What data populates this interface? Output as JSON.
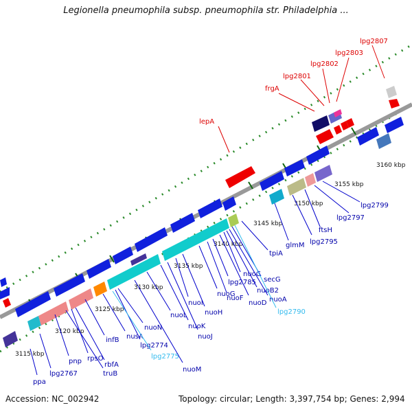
{
  "header": {
    "title": "Legionella pneumophila subsp. pneumophila str. Philadelphia ..."
  },
  "footer": {
    "accession": "Accession: NC_002942",
    "summary": "Topology: circular; Length: 3,397,754 bp; Genes: 2,994"
  },
  "colors": {
    "backbone": "#999999",
    "forward_gene": "#0000ee",
    "label_forward": "#dd0000",
    "label_reverse": "#0000aa",
    "label_highlight": "#33bbee",
    "tick": "#116611"
  },
  "scale_labels": [
    "3115 kbp",
    "3120 kbp",
    "3125 kbp",
    "3130 kbp",
    "3135 kbp",
    "3140 kbp",
    "3145 kbp",
    "3150 kbp",
    "3155 kbp",
    "3160 kbp"
  ],
  "upper_genes": [
    "lepA",
    "frgA",
    "lpg2801",
    "lpg2802",
    "lpg2803",
    "lpg2807"
  ],
  "lower_genes": [
    "ppa",
    "lpg2767",
    "pnp",
    "rpsO",
    "rbfA",
    "truB",
    "infB",
    "nusA",
    "nuoN",
    "lpg2774",
    "lpg2775",
    "nuoM",
    "nuoL",
    "nuoK",
    "nuoJ",
    "nuoI",
    "nuoH",
    "nuoG",
    "nuoF",
    "lpg2785",
    "nuoD",
    "nuoC",
    "nuoB2",
    "nuoA",
    "secG",
    "lpg2790",
    "tpiA",
    "glmM",
    "lpg2795",
    "ftsH",
    "lpg2797",
    "lpg2799"
  ]
}
